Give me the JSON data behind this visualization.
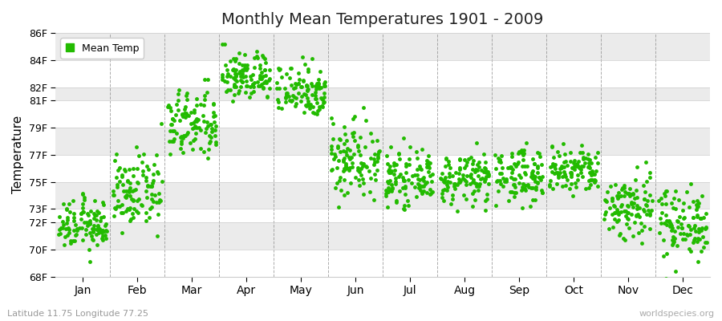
{
  "title": "Monthly Mean Temperatures 1901 - 2009",
  "ylabel": "Temperature",
  "xlabel_labels": [
    "Jan",
    "Feb",
    "Mar",
    "Apr",
    "May",
    "Jun",
    "Jul",
    "Aug",
    "Sep",
    "Oct",
    "Nov",
    "Dec"
  ],
  "ytick_labels": [
    "68F",
    "70F",
    "72F",
    "73F",
    "75F",
    "77F",
    "79F",
    "81F",
    "82F",
    "84F",
    "86F"
  ],
  "ytick_values": [
    68,
    70,
    72,
    73,
    75,
    77,
    79,
    81,
    82,
    84,
    86
  ],
  "ylim": [
    68,
    86
  ],
  "marker_color": "#22bb00",
  "marker": "o",
  "marker_size": 3.5,
  "bg_color": "#ffffff",
  "plot_bg_color": "#ffffff",
  "alt_band_color": "#ebebeb",
  "legend_label": "Mean Temp",
  "subtitle": "Latitude 11.75 Longitude 77.25",
  "watermark": "worldspecies.org",
  "monthly_means": [
    71.8,
    74.2,
    79.2,
    82.8,
    81.8,
    76.8,
    75.2,
    75.2,
    75.5,
    75.8,
    73.2,
    72.0
  ],
  "monthly_stds": [
    0.9,
    1.3,
    1.3,
    0.9,
    1.0,
    1.5,
    0.9,
    0.9,
    1.0,
    0.9,
    1.3,
    1.3
  ],
  "n_years": 109
}
